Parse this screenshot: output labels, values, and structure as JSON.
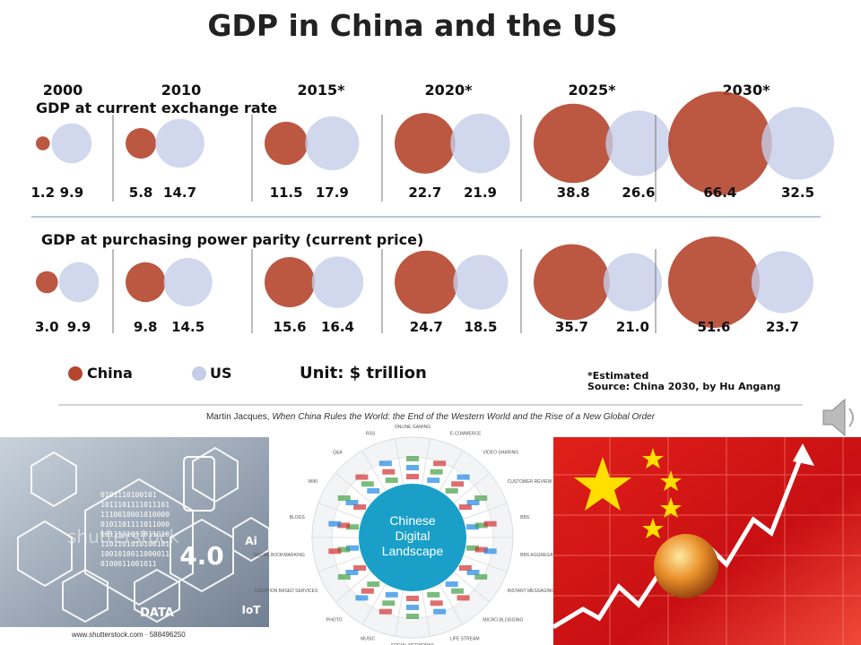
{
  "title": "GDP in China and the US",
  "years": [
    "2000",
    "2010",
    "2015*",
    "2020*",
    "2025*",
    "2030*"
  ],
  "panels": [
    {
      "label": "GDP at current exchange rate",
      "china": {
        "values": [
          1.2,
          5.8,
          11.5,
          22.7,
          38.8,
          66.4
        ],
        "value_labels": [
          "1.2",
          "5.8",
          "11.5",
          "22.7",
          "38.8",
          "66.4"
        ]
      },
      "us": {
        "values": [
          9.9,
          14.7,
          17.9,
          21.9,
          26.6,
          32.5
        ],
        "value_labels": [
          "9.9",
          "14.7",
          "17.9",
          "21.9",
          "26.6",
          "32.5"
        ]
      }
    },
    {
      "label": "GDP at purchasing power parity (current price)",
      "china": {
        "values": [
          3.0,
          9.8,
          15.6,
          24.7,
          35.7,
          51.6
        ],
        "value_labels": [
          "3.0",
          "9.8",
          "15.6",
          "24.7",
          "35.7",
          "51.6"
        ]
      },
      "us": {
        "values": [
          9.9,
          14.5,
          16.4,
          18.5,
          21.0,
          23.7
        ],
        "value_labels": [
          "9.9",
          "14.5",
          "16.4",
          "18.5",
          "21.0",
          "23.7"
        ]
      }
    }
  ],
  "legend": {
    "china": "China",
    "us": "US"
  },
  "colors": {
    "china": "#b5452d",
    "us": "#c6cde8"
  },
  "unit": "Unit: $ trillion",
  "note": "*Estimated",
  "source": "Source: China 2030, by Hu Angang",
  "citation": {
    "author": "Martin Jacques, ",
    "book": "When China Rules the World: the End of the Western World and the Rise of a New Global Order"
  },
  "images": {
    "watermark": "shutterstock",
    "credit": "www.shutterstock.com · 588496250",
    "tiles": [
      "DATA",
      "4.0",
      "Ai",
      "IoT"
    ],
    "wheel_title": [
      "Chinese",
      "Digital",
      "Landscape"
    ],
    "wheel_labels": [
      "ONLINE GAMING",
      "E-COMMERCE",
      "VIDEO SHARING",
      "CUSTOMER REVIEW",
      "BBS",
      "BBS AGGREGATOR",
      "INSTANT MESSAGING",
      "MICRO-BLOGGING",
      "LIFE STREAM",
      "SOCIAL NETWORKS",
      "MUSIC",
      "PHOTO",
      "LOCATION BASED SERVICES",
      "SOCIAL BOOKMARKING",
      "BLOGS",
      "WIKI",
      "Q&A",
      "RSS"
    ]
  }
}
